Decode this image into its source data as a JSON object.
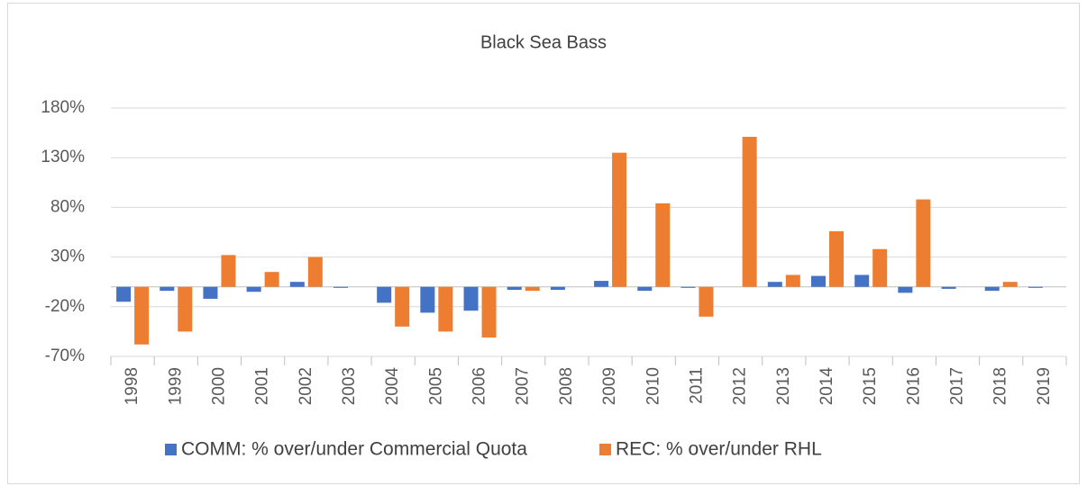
{
  "chart_data": {
    "type": "bar",
    "title": "Black Sea Bass",
    "categories": [
      "1998",
      "1999",
      "2000",
      "2001",
      "2002",
      "2003",
      "2004",
      "2005",
      "2006",
      "2007",
      "2008",
      "2009",
      "2010",
      "2011",
      "2012",
      "2013",
      "2014",
      "2015",
      "2016",
      "2017",
      "2018",
      "2019"
    ],
    "series": [
      {
        "name": "COMM: % over/under Commercial Quota",
        "color": "#4472c4",
        "values": [
          -15,
          -4,
          -12,
          -5,
          5,
          -1,
          -16,
          -26,
          -24,
          -3,
          -3,
          6,
          -4,
          -1,
          0,
          5,
          11,
          12,
          -6,
          -2,
          -4,
          -1
        ]
      },
      {
        "name": "REC: % over/under RHL",
        "color": "#ed7d31",
        "values": [
          -58,
          -45,
          32,
          15,
          30,
          null,
          -40,
          -45,
          -51,
          -4,
          null,
          135,
          84,
          -30,
          151,
          12,
          56,
          38,
          88,
          null,
          5,
          null
        ]
      }
    ],
    "ylim": [
      -70,
      180
    ],
    "yticks": [
      {
        "value": -70,
        "label": "-70%"
      },
      {
        "value": -20,
        "label": "-20%"
      },
      {
        "value": 30,
        "label": "30%"
      },
      {
        "value": 80,
        "label": "80%"
      },
      {
        "value": 130,
        "label": "130%"
      },
      {
        "value": 180,
        "label": "180%"
      }
    ],
    "grid": true,
    "legend": "bottom"
  }
}
